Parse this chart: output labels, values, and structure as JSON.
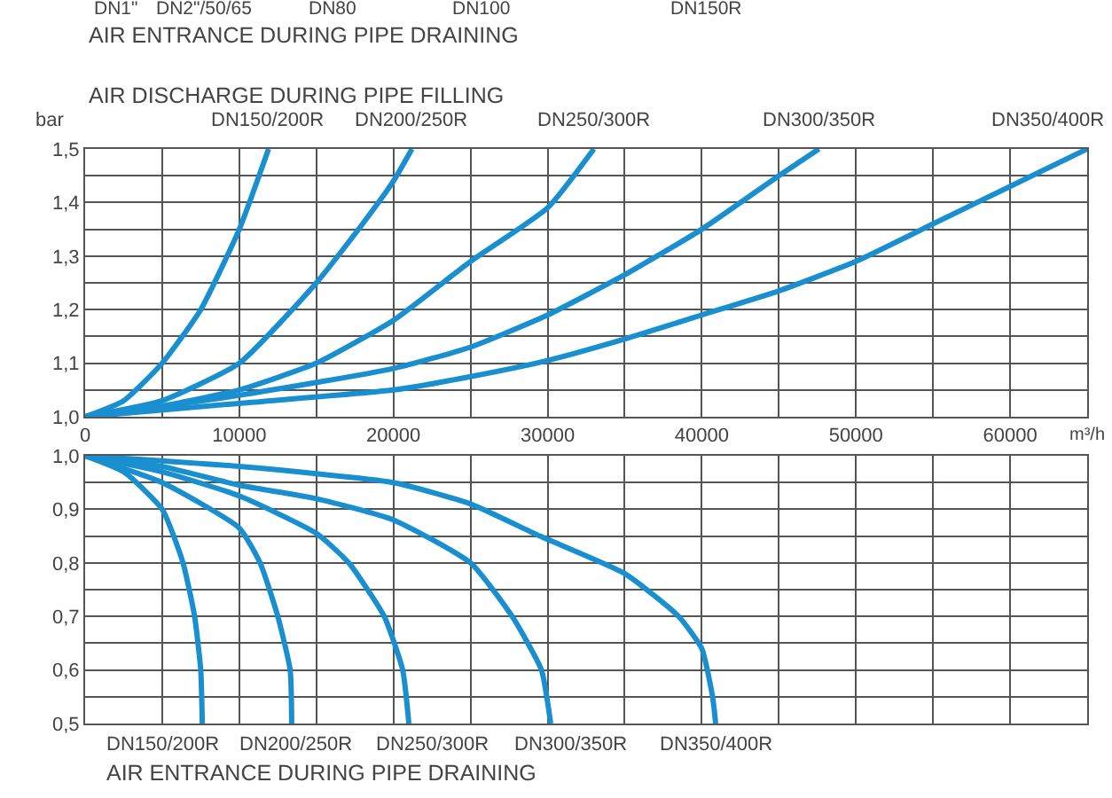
{
  "chart_data": [
    {
      "type": "line",
      "title": "AIR DISCHARGE DURING PIPE FILLING",
      "ylabel": "bar",
      "xlabel": "m³/h",
      "annotations": [
        "DN1\"",
        "DN2\"/50/65",
        "DN80",
        "DN100",
        "DN150R",
        "AIR ENTRANCE DURING PIPE DRAINING"
      ],
      "xlim": [
        0,
        65000
      ],
      "ylim": [
        1.0,
        1.5
      ],
      "xticks": [
        0,
        {
          "value": 5000,
          "label": null
        },
        10000,
        {
          "value": 15000,
          "label": null
        },
        20000,
        {
          "value": 25000,
          "label": null
        },
        30000,
        {
          "value": 35000,
          "label": null
        },
        40000,
        {
          "value": 45000,
          "label": null
        },
        50000,
        {
          "value": 55000,
          "label": null
        },
        60000,
        {
          "value": 65000,
          "label": null
        }
      ],
      "yticks": [
        {
          "value": 1.0,
          "label": "1,0"
        },
        {
          "value": 1.05,
          "label": null
        },
        {
          "value": 1.1,
          "label": "1,1"
        },
        {
          "value": 1.15,
          "label": null
        },
        {
          "value": 1.2,
          "label": "1,2"
        },
        {
          "value": 1.25,
          "label": null
        },
        {
          "value": 1.3,
          "label": "1,3"
        },
        {
          "value": 1.35,
          "label": null
        },
        {
          "value": 1.4,
          "label": "1,4"
        },
        {
          "value": 1.45,
          "label": null
        },
        {
          "value": 1.5,
          "label": "1,5"
        }
      ],
      "grid": true,
      "legend": false,
      "marker": "none",
      "line_style": "solid",
      "series": [
        {
          "name": "DN150/200R",
          "color": "#1a8fd0",
          "x": [
            0,
            2500,
            5000,
            7500,
            10000,
            11900
          ],
          "values": [
            1.0,
            1.03,
            1.1,
            1.2,
            1.35,
            1.5
          ]
        },
        {
          "name": "DN200/250R",
          "color": "#1a8fd0",
          "x": [
            0,
            5000,
            10000,
            15000,
            18000,
            20000,
            21200
          ],
          "values": [
            1.0,
            1.03,
            1.1,
            1.25,
            1.36,
            1.44,
            1.5
          ]
        },
        {
          "name": "DN250/300R",
          "color": "#1a8fd0",
          "x": [
            0,
            5000,
            10000,
            15000,
            20000,
            25000,
            30000,
            33000
          ],
          "values": [
            1.0,
            1.02,
            1.05,
            1.1,
            1.18,
            1.29,
            1.39,
            1.5
          ]
        },
        {
          "name": "DN300/350R",
          "color": "#1a8fd0",
          "x": [
            0,
            10000,
            20000,
            25000,
            30000,
            35000,
            40000,
            45000,
            47600
          ],
          "values": [
            1.0,
            1.04,
            1.09,
            1.13,
            1.19,
            1.265,
            1.35,
            1.45,
            1.5
          ]
        },
        {
          "name": "DN350/400R",
          "color": "#1a8fd0",
          "x": [
            0,
            10000,
            20000,
            25000,
            30000,
            35000,
            40000,
            45000,
            50000,
            55000,
            60000,
            65000
          ],
          "values": [
            1.0,
            1.025,
            1.05,
            1.075,
            1.105,
            1.145,
            1.19,
            1.235,
            1.29,
            1.36,
            1.43,
            1.5
          ]
        }
      ]
    },
    {
      "type": "line",
      "xlabel": "AIR ENTRANCE DURING PIPE DRAINING",
      "xlim": [
        0,
        65000
      ],
      "ylim": [
        0.5,
        1.0
      ],
      "tick_labels": "y",
      "xticks": [
        0,
        {
          "value": 5000,
          "label": null
        },
        10000,
        {
          "value": 15000,
          "label": null
        },
        20000,
        {
          "value": 25000,
          "label": null
        },
        30000,
        {
          "value": 35000,
          "label": null
        },
        40000,
        {
          "value": 45000,
          "label": null
        },
        50000,
        {
          "value": 55000,
          "label": null
        },
        60000,
        {
          "value": 65000,
          "label": null
        }
      ],
      "yticks": [
        {
          "value": 0.5,
          "label": "0,5"
        },
        {
          "value": 0.55,
          "label": null
        },
        {
          "value": 0.6,
          "label": "0,6"
        },
        {
          "value": 0.65,
          "label": null
        },
        {
          "value": 0.7,
          "label": "0,7"
        },
        {
          "value": 0.75,
          "label": null
        },
        {
          "value": 0.8,
          "label": "0,8"
        },
        {
          "value": 0.85,
          "label": null
        },
        {
          "value": 0.9,
          "label": "0,9"
        },
        {
          "value": 0.95,
          "label": null
        },
        {
          "value": 1.0,
          "label": "1,0"
        }
      ],
      "grid": true,
      "legend": false,
      "marker": "none",
      "line_style": "solid",
      "series": [
        {
          "name": "DN150/200R",
          "color": "#1a8fd0",
          "x": [
            0,
            2500,
            5000,
            6350,
            7100,
            7500,
            7600
          ],
          "values": [
            1.0,
            0.97,
            0.9,
            0.8,
            0.7,
            0.6,
            0.5
          ]
        },
        {
          "name": "DN200/250R",
          "color": "#1a8fd0",
          "x": [
            0,
            5000,
            10000,
            11350,
            12500,
            13300,
            13400
          ],
          "values": [
            1.0,
            0.95,
            0.865,
            0.8,
            0.7,
            0.6,
            0.5
          ]
        },
        {
          "name": "DN250/300R",
          "color": "#1a8fd0",
          "x": [
            0,
            5000,
            10000,
            15000,
            17100,
            19400,
            20600,
            21000
          ],
          "values": [
            1.0,
            0.97,
            0.925,
            0.855,
            0.8,
            0.7,
            0.6,
            0.5
          ]
        },
        {
          "name": "DN300/350R",
          "color": "#1a8fd0",
          "x": [
            0,
            5000,
            10000,
            15000,
            20000,
            25000,
            27700,
            29600,
            30200
          ],
          "values": [
            1.0,
            0.98,
            0.945,
            0.92,
            0.88,
            0.8,
            0.7,
            0.6,
            0.5
          ]
        },
        {
          "name": "DN350/400R",
          "color": "#1a8fd0",
          "x": [
            0,
            10000,
            20000,
            25000,
            29500,
            35000,
            38500,
            40000,
            40700,
            40900
          ],
          "values": [
            1.0,
            0.98,
            0.95,
            0.91,
            0.85,
            0.78,
            0.7,
            0.64,
            0.55,
            0.5
          ]
        }
      ]
    }
  ]
}
